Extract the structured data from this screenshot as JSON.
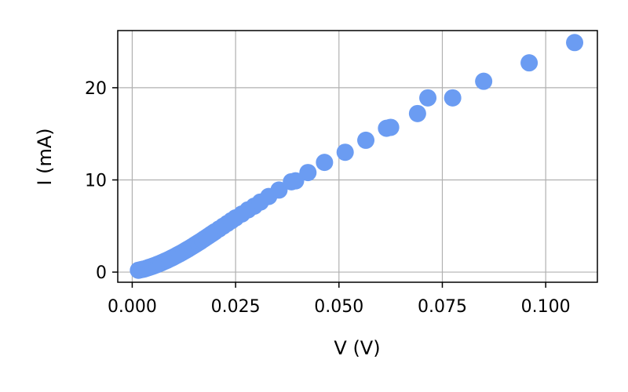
{
  "chart_data": {
    "type": "scatter",
    "xlabel": "V (V)",
    "ylabel": "I (mA)",
    "xlim": [
      -0.0035,
      0.1125
    ],
    "ylim": [
      -1.1,
      26.2
    ],
    "xticks": [
      0.0,
      0.025,
      0.05,
      0.075,
      0.1
    ],
    "xtick_labels": [
      "0.000",
      "0.025",
      "0.050",
      "0.075",
      "0.100"
    ],
    "yticks": [
      0,
      10,
      20
    ],
    "ytick_labels": [
      "0",
      "10",
      "20"
    ],
    "grid": true,
    "marker_color": "#6b9cf2",
    "series": [
      {
        "points": [
          [
            0.0015,
            0.2
          ],
          [
            0.002,
            0.25
          ],
          [
            0.0025,
            0.3
          ],
          [
            0.003,
            0.35
          ],
          [
            0.0035,
            0.42
          ],
          [
            0.004,
            0.5
          ],
          [
            0.0045,
            0.57
          ],
          [
            0.005,
            0.65
          ],
          [
            0.0055,
            0.73
          ],
          [
            0.006,
            0.82
          ],
          [
            0.0065,
            0.91
          ],
          [
            0.007,
            1.0
          ],
          [
            0.0075,
            1.1
          ],
          [
            0.008,
            1.2
          ],
          [
            0.0085,
            1.3
          ],
          [
            0.009,
            1.41
          ],
          [
            0.0095,
            1.52
          ],
          [
            0.01,
            1.63
          ],
          [
            0.0105,
            1.75
          ],
          [
            0.011,
            1.87
          ],
          [
            0.0115,
            1.99
          ],
          [
            0.012,
            2.11
          ],
          [
            0.0125,
            2.24
          ],
          [
            0.013,
            2.37
          ],
          [
            0.0135,
            2.5
          ],
          [
            0.014,
            2.63
          ],
          [
            0.0145,
            2.77
          ],
          [
            0.015,
            2.91
          ],
          [
            0.0155,
            3.05
          ],
          [
            0.016,
            3.19
          ],
          [
            0.0165,
            3.33
          ],
          [
            0.017,
            3.48
          ],
          [
            0.0175,
            3.63
          ],
          [
            0.018,
            3.78
          ],
          [
            0.0185,
            3.93
          ],
          [
            0.019,
            4.08
          ],
          [
            0.0195,
            4.23
          ],
          [
            0.02,
            4.38
          ],
          [
            0.021,
            4.68
          ],
          [
            0.022,
            4.98
          ],
          [
            0.023,
            5.28
          ],
          [
            0.024,
            5.58
          ],
          [
            0.025,
            5.88
          ],
          [
            0.0265,
            6.3
          ],
          [
            0.028,
            6.75
          ],
          [
            0.0295,
            7.15
          ],
          [
            0.031,
            7.6
          ],
          [
            0.033,
            8.2
          ],
          [
            0.0355,
            8.9
          ],
          [
            0.0385,
            9.8
          ],
          [
            0.0395,
            9.9
          ],
          [
            0.0425,
            10.8
          ],
          [
            0.0465,
            11.9
          ],
          [
            0.0515,
            13.0
          ],
          [
            0.0565,
            14.3
          ],
          [
            0.0615,
            15.6
          ],
          [
            0.0625,
            15.7
          ],
          [
            0.069,
            17.2
          ],
          [
            0.0715,
            18.9
          ],
          [
            0.0775,
            18.9
          ],
          [
            0.085,
            20.7
          ],
          [
            0.096,
            22.7
          ],
          [
            0.107,
            24.9
          ]
        ]
      }
    ]
  }
}
